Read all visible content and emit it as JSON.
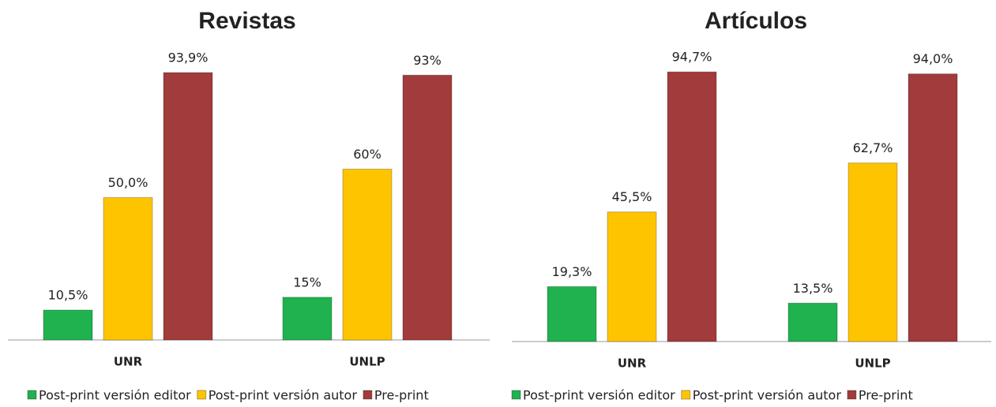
{
  "chart_data": [
    {
      "type": "bar",
      "title": "Revistas",
      "categories": [
        "UNR",
        "UNLP"
      ],
      "series": [
        {
          "name": "Post-print versión editor",
          "color": "#1fb24e",
          "values": [
            10.5,
            15
          ],
          "value_labels": [
            "10,5%",
            "15%"
          ]
        },
        {
          "name": "Post-print versión autor",
          "color": "#ffc400",
          "values": [
            50.0,
            60
          ],
          "value_labels": [
            "50,0%",
            "60%"
          ]
        },
        {
          "name": "Pre-print",
          "color": "#a23b3b",
          "values": [
            93.9,
            93
          ],
          "value_labels": [
            "93,9%",
            "93%"
          ]
        }
      ]
    },
    {
      "type": "bar",
      "title": "Artículos",
      "categories": [
        "UNR",
        "UNLP"
      ],
      "series": [
        {
          "name": "Post-print versión editor",
          "color": "#1fb24e",
          "values": [
            19.3,
            13.5
          ],
          "value_labels": [
            "19,3%",
            "13,5%"
          ]
        },
        {
          "name": "Post-print versión autor",
          "color": "#ffc400",
          "values": [
            45.5,
            62.7
          ],
          "value_labels": [
            "45,5%",
            "62,7%"
          ]
        },
        {
          "name": "Pre-print",
          "color": "#a23b3b",
          "values": [
            94.7,
            94.0
          ],
          "value_labels": [
            "94,7%",
            "94,0%"
          ]
        }
      ]
    }
  ]
}
